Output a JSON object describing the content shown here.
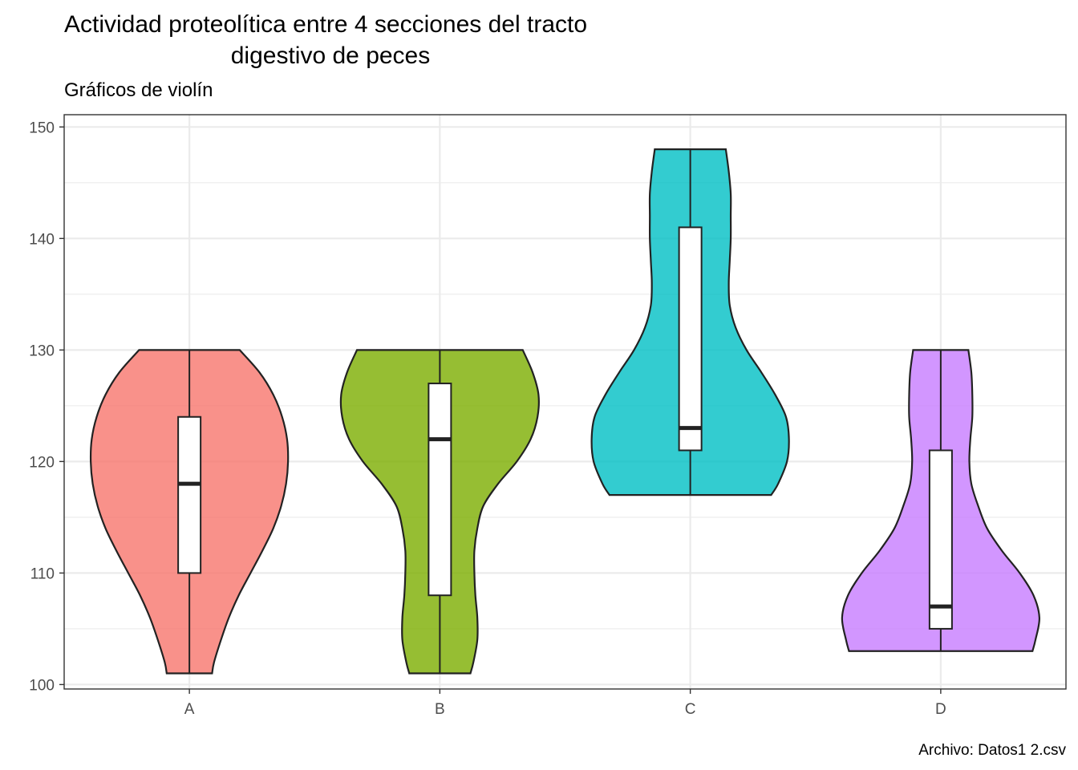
{
  "chart_data": {
    "type": "violin",
    "title_lines": [
      "Actividad proteolítica entre 4 secciones del tracto",
      "digestivo de peces"
    ],
    "subtitle": "Gráficos de violín",
    "caption": "Archivo: Datos1 2.csv",
    "xlabel": "",
    "ylabel": "",
    "categories": [
      "A",
      "B",
      "C",
      "D"
    ],
    "ylim": [
      99.6,
      151.1
    ],
    "yticks": [
      100,
      110,
      120,
      130,
      140,
      150
    ],
    "grid": true,
    "legend": "none",
    "series": [
      {
        "category": "A",
        "color": "#F8766D",
        "min": 101,
        "q1": 110,
        "median": 118,
        "q3": 124,
        "max": 130,
        "density_profile": [
          [
            101,
            0.23
          ],
          [
            102,
            0.25
          ],
          [
            104,
            0.32
          ],
          [
            106,
            0.4
          ],
          [
            108,
            0.5
          ],
          [
            110,
            0.62
          ],
          [
            112,
            0.74
          ],
          [
            114,
            0.85
          ],
          [
            116,
            0.93
          ],
          [
            118,
            0.98
          ],
          [
            120,
            1.0
          ],
          [
            122,
            0.99
          ],
          [
            124,
            0.94
          ],
          [
            126,
            0.85
          ],
          [
            128,
            0.71
          ],
          [
            130,
            0.51
          ]
        ]
      },
      {
        "category": "B",
        "color": "#7CAE00",
        "min": 101,
        "q1": 108,
        "median": 122,
        "q3": 127,
        "max": 130,
        "density_profile": [
          [
            101,
            0.31
          ],
          [
            102,
            0.34
          ],
          [
            104,
            0.38
          ],
          [
            106,
            0.38
          ],
          [
            108,
            0.36
          ],
          [
            110,
            0.35
          ],
          [
            112,
            0.35
          ],
          [
            114,
            0.38
          ],
          [
            116,
            0.44
          ],
          [
            118,
            0.59
          ],
          [
            120,
            0.78
          ],
          [
            122,
            0.92
          ],
          [
            124,
            0.99
          ],
          [
            126,
            1.0
          ],
          [
            128,
            0.94
          ],
          [
            130,
            0.84
          ]
        ]
      },
      {
        "category": "C",
        "color": "#00BFC4",
        "min": 117,
        "q1": 121,
        "median": 123,
        "q3": 141,
        "max": 148,
        "density_profile": [
          [
            117,
            0.82
          ],
          [
            118,
            0.89
          ],
          [
            120,
            0.98
          ],
          [
            122,
            1.0
          ],
          [
            124,
            0.97
          ],
          [
            126,
            0.86
          ],
          [
            128,
            0.72
          ],
          [
            130,
            0.57
          ],
          [
            132,
            0.46
          ],
          [
            134,
            0.4
          ],
          [
            136,
            0.39
          ],
          [
            138,
            0.4
          ],
          [
            140,
            0.41
          ],
          [
            142,
            0.41
          ],
          [
            144,
            0.41
          ],
          [
            146,
            0.39
          ],
          [
            148,
            0.36
          ]
        ]
      },
      {
        "category": "D",
        "color": "#C77CFF",
        "min": 103,
        "q1": 105,
        "median": 107,
        "q3": 121,
        "max": 130,
        "density_profile": [
          [
            103,
            0.93
          ],
          [
            104,
            0.96
          ],
          [
            106,
            1.0
          ],
          [
            108,
            0.94
          ],
          [
            110,
            0.8
          ],
          [
            112,
            0.62
          ],
          [
            114,
            0.47
          ],
          [
            116,
            0.38
          ],
          [
            118,
            0.31
          ],
          [
            120,
            0.29
          ],
          [
            122,
            0.3
          ],
          [
            124,
            0.32
          ],
          [
            126,
            0.32
          ],
          [
            128,
            0.31
          ],
          [
            130,
            0.28
          ]
        ]
      }
    ]
  }
}
